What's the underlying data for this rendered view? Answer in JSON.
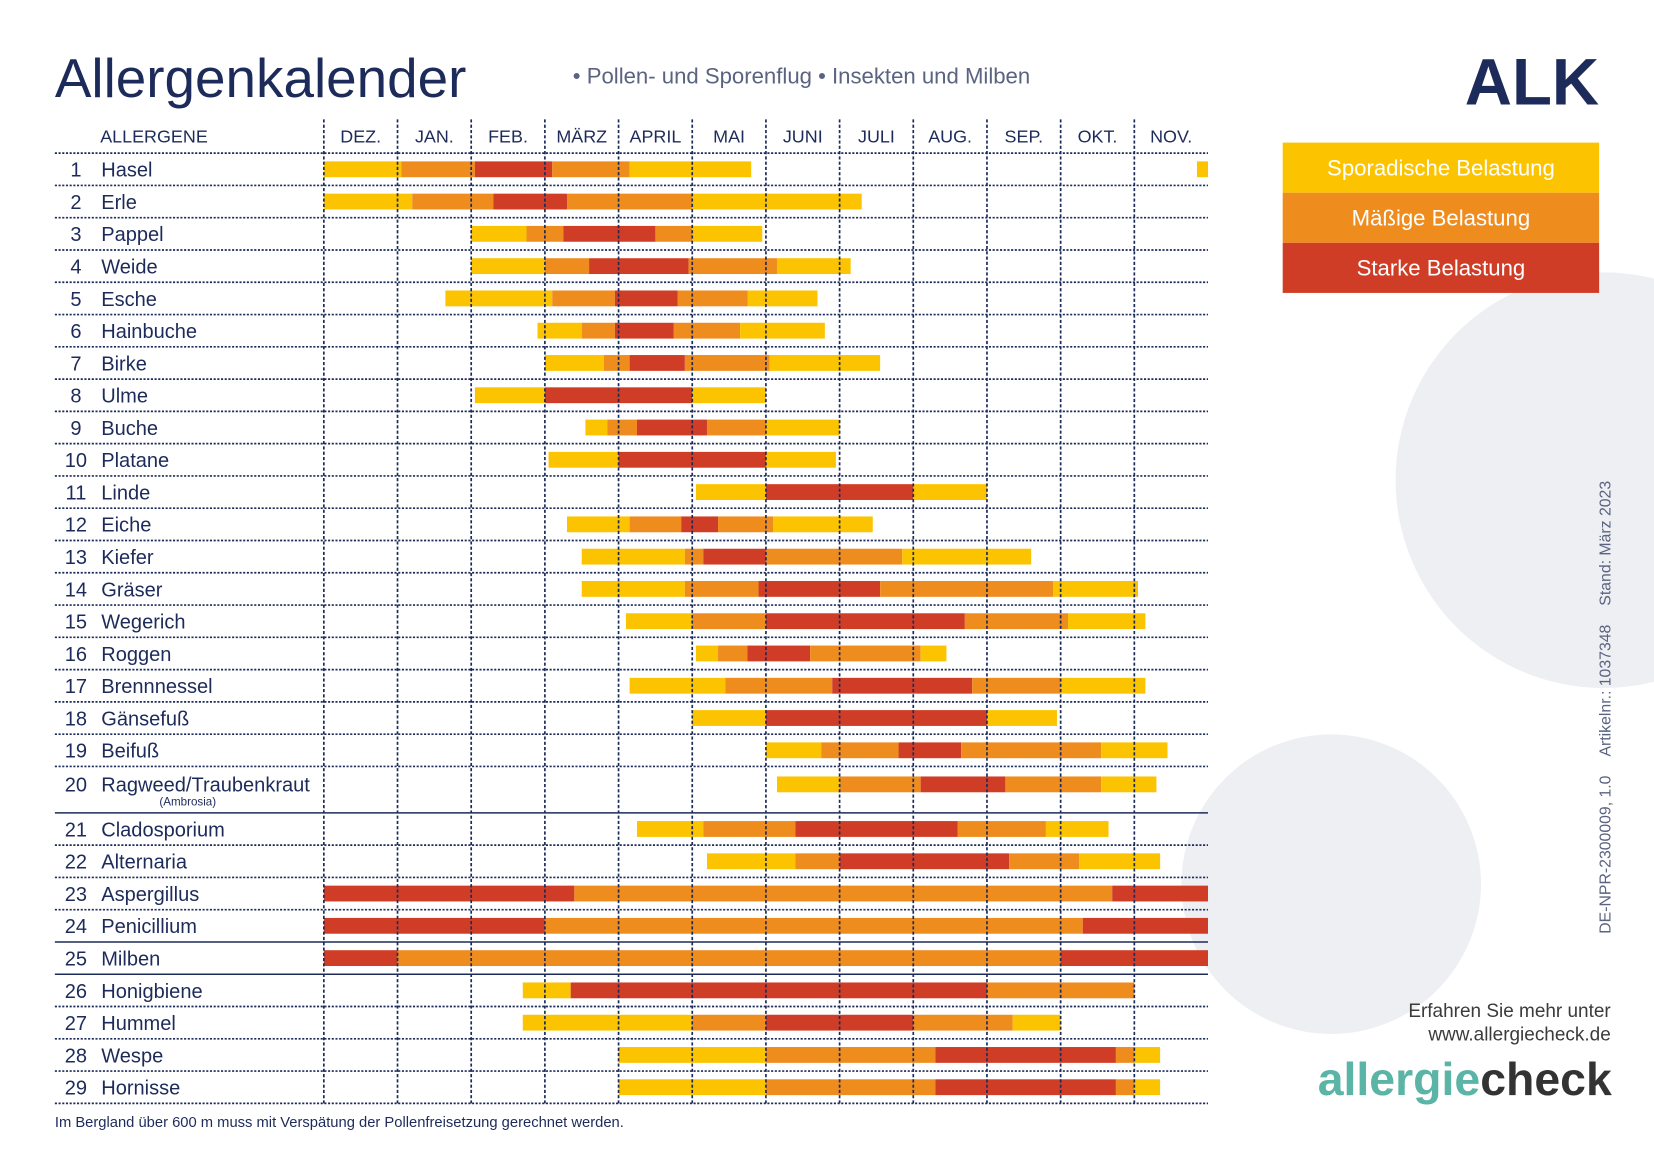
{
  "header": {
    "title": "Allergenkalender",
    "subtitle_items": [
      "Pollen- und Sporenflug",
      "Insekten und Milben"
    ],
    "logo": "ALK"
  },
  "legend": [
    {
      "label": "Sporadische Belastung",
      "color": "#fcc400"
    },
    {
      "label": "Mäßige Belastung",
      "color": "#ef8c1e"
    },
    {
      "label": "Starke Belastung",
      "color": "#d03d27"
    }
  ],
  "calendar": {
    "column_header": "ALLERGENE",
    "months": [
      "DEZ.",
      "JAN.",
      "FEB.",
      "MÄRZ",
      "APRIL",
      "MAI",
      "JUNI",
      "JULI",
      "AUG.",
      "SEP.",
      "OKT.",
      "NOV."
    ],
    "rows": [
      {
        "number": "1",
        "name": "Hasel",
        "segments": [
          [
            0,
            1.05,
            0
          ],
          [
            1.05,
            2.05,
            1
          ],
          [
            2.05,
            3.1,
            2
          ],
          [
            3.1,
            4.15,
            1
          ],
          [
            4.15,
            5.8,
            0
          ],
          [
            11.85,
            12,
            0
          ]
        ]
      },
      {
        "number": "2",
        "name": "Erle",
        "segments": [
          [
            0,
            1.2,
            0
          ],
          [
            1.2,
            2.3,
            1
          ],
          [
            2.3,
            3.3,
            2
          ],
          [
            3.3,
            5.0,
            1
          ],
          [
            5.0,
            7.3,
            0
          ]
        ]
      },
      {
        "number": "3",
        "name": "Pappel",
        "segments": [
          [
            2.0,
            2.75,
            0
          ],
          [
            2.75,
            3.25,
            1
          ],
          [
            3.25,
            4.5,
            2
          ],
          [
            4.5,
            5.0,
            1
          ],
          [
            5.0,
            5.95,
            0
          ]
        ]
      },
      {
        "number": "4",
        "name": "Weide",
        "segments": [
          [
            2.0,
            3.0,
            0
          ],
          [
            3.0,
            3.6,
            1
          ],
          [
            3.6,
            4.95,
            2
          ],
          [
            4.95,
            6.15,
            1
          ],
          [
            6.15,
            7.15,
            0
          ]
        ]
      },
      {
        "number": "5",
        "name": "Esche",
        "segments": [
          [
            1.65,
            3.1,
            0
          ],
          [
            3.1,
            3.95,
            1
          ],
          [
            3.95,
            4.8,
            2
          ],
          [
            4.8,
            5.75,
            1
          ],
          [
            5.75,
            6.7,
            0
          ]
        ]
      },
      {
        "number": "6",
        "name": "Hainbuche",
        "segments": [
          [
            2.9,
            3.5,
            0
          ],
          [
            3.5,
            3.95,
            1
          ],
          [
            3.95,
            4.75,
            2
          ],
          [
            4.75,
            5.65,
            1
          ],
          [
            5.65,
            6.8,
            0
          ]
        ]
      },
      {
        "number": "7",
        "name": "Birke",
        "segments": [
          [
            3.0,
            3.8,
            0
          ],
          [
            3.8,
            4.15,
            1
          ],
          [
            4.15,
            4.9,
            2
          ],
          [
            4.9,
            6.05,
            1
          ],
          [
            6.05,
            7.55,
            0
          ]
        ]
      },
      {
        "number": "8",
        "name": "Ulme",
        "segments": [
          [
            2.05,
            3.0,
            0
          ],
          [
            3.0,
            5.0,
            2
          ],
          [
            5.0,
            6.0,
            0
          ]
        ]
      },
      {
        "number": "9",
        "name": "Buche",
        "segments": [
          [
            3.55,
            3.85,
            0
          ],
          [
            3.85,
            4.25,
            1
          ],
          [
            4.25,
            5.2,
            2
          ],
          [
            5.2,
            6.0,
            1
          ],
          [
            6.0,
            7.0,
            0
          ]
        ]
      },
      {
        "number": "10",
        "name": "Platane",
        "segments": [
          [
            3.05,
            4.0,
            0
          ],
          [
            4.0,
            6.0,
            2
          ],
          [
            6.0,
            6.95,
            0
          ]
        ]
      },
      {
        "number": "11",
        "name": "Linde",
        "segments": [
          [
            5.05,
            6.0,
            0
          ],
          [
            6.0,
            8.0,
            2
          ],
          [
            8.0,
            9.0,
            0
          ]
        ]
      },
      {
        "number": "12",
        "name": "Eiche",
        "segments": [
          [
            3.3,
            4.15,
            0
          ],
          [
            4.15,
            4.85,
            1
          ],
          [
            4.85,
            5.35,
            2
          ],
          [
            5.35,
            6.1,
            1
          ],
          [
            6.1,
            7.45,
            0
          ]
        ]
      },
      {
        "number": "13",
        "name": "Kiefer",
        "segments": [
          [
            3.5,
            4.9,
            0
          ],
          [
            4.9,
            5.15,
            1
          ],
          [
            5.15,
            6.0,
            2
          ],
          [
            6.0,
            7.85,
            1
          ],
          [
            7.85,
            9.6,
            0
          ]
        ]
      },
      {
        "number": "14",
        "name": "Gräser",
        "segments": [
          [
            3.5,
            4.9,
            0
          ],
          [
            4.9,
            5.9,
            1
          ],
          [
            5.9,
            7.55,
            2
          ],
          [
            7.55,
            9.9,
            1
          ],
          [
            9.9,
            11.05,
            0
          ]
        ]
      },
      {
        "number": "15",
        "name": "Wegerich",
        "segments": [
          [
            4.1,
            5.0,
            0
          ],
          [
            5.0,
            6.0,
            1
          ],
          [
            6.0,
            8.7,
            2
          ],
          [
            8.7,
            10.1,
            1
          ],
          [
            10.1,
            11.15,
            0
          ]
        ]
      },
      {
        "number": "16",
        "name": "Roggen",
        "segments": [
          [
            5.05,
            5.35,
            0
          ],
          [
            5.35,
            5.75,
            1
          ],
          [
            5.75,
            6.6,
            2
          ],
          [
            6.6,
            8.1,
            1
          ],
          [
            8.1,
            8.45,
            0
          ]
        ]
      },
      {
        "number": "17",
        "name": "Brennnessel",
        "segments": [
          [
            4.15,
            5.45,
            0
          ],
          [
            5.45,
            6.9,
            1
          ],
          [
            6.9,
            8.8,
            2
          ],
          [
            8.8,
            10.0,
            1
          ],
          [
            10.0,
            11.15,
            0
          ]
        ]
      },
      {
        "number": "18",
        "name": "Gänsefuß",
        "segments": [
          [
            5.0,
            6.0,
            0
          ],
          [
            6.0,
            9.0,
            2
          ],
          [
            9.0,
            9.95,
            0
          ]
        ]
      },
      {
        "number": "19",
        "name": "Beifuß",
        "segments": [
          [
            6.0,
            6.75,
            0
          ],
          [
            6.75,
            7.8,
            1
          ],
          [
            7.8,
            8.65,
            2
          ],
          [
            8.65,
            10.55,
            1
          ],
          [
            10.55,
            11.45,
            0
          ]
        ]
      },
      {
        "number": "20",
        "name": "Ragweed/Traubenkraut",
        "note": "(Ambrosia)",
        "segments": [
          [
            6.15,
            7.0,
            0
          ],
          [
            7.0,
            8.1,
            1
          ],
          [
            8.1,
            9.25,
            2
          ],
          [
            9.25,
            10.55,
            1
          ],
          [
            10.55,
            11.3,
            0
          ]
        ]
      },
      {
        "number": "21",
        "name": "Cladosporium",
        "segments": [
          [
            4.25,
            5.15,
            0
          ],
          [
            5.15,
            6.4,
            1
          ],
          [
            6.4,
            8.6,
            2
          ],
          [
            8.6,
            9.8,
            1
          ],
          [
            9.8,
            10.65,
            0
          ]
        ]
      },
      {
        "number": "22",
        "name": "Alternaria",
        "segments": [
          [
            5.2,
            6.4,
            0
          ],
          [
            6.4,
            7.0,
            1
          ],
          [
            7.0,
            9.3,
            2
          ],
          [
            9.3,
            10.25,
            1
          ],
          [
            10.25,
            11.35,
            0
          ]
        ]
      },
      {
        "number": "23",
        "name": "Aspergillus",
        "segments": [
          [
            0,
            3.4,
            2
          ],
          [
            3.4,
            10.7,
            1
          ],
          [
            10.7,
            12,
            2
          ]
        ]
      },
      {
        "number": "24",
        "name": "Penicillium",
        "segments": [
          [
            0,
            3.0,
            2
          ],
          [
            3.0,
            10.3,
            1
          ],
          [
            10.3,
            12,
            2
          ]
        ]
      },
      {
        "number": "25",
        "name": "Milben",
        "segments": [
          [
            0,
            1.0,
            2
          ],
          [
            1.0,
            10.0,
            1
          ],
          [
            10.0,
            12,
            2
          ]
        ]
      },
      {
        "number": "26",
        "name": "Honigbiene",
        "segments": [
          [
            2.7,
            3.35,
            0
          ],
          [
            3.35,
            9.0,
            2
          ],
          [
            9.0,
            11.0,
            1
          ]
        ]
      },
      {
        "number": "27",
        "name": "Hummel",
        "segments": [
          [
            2.7,
            5.0,
            0
          ],
          [
            5.0,
            6.0,
            1
          ],
          [
            6.0,
            8.0,
            2
          ],
          [
            8.0,
            9.35,
            1
          ],
          [
            9.35,
            10.0,
            0
          ]
        ]
      },
      {
        "number": "28",
        "name": "Wespe",
        "segments": [
          [
            4.0,
            6.0,
            0
          ],
          [
            6.0,
            8.3,
            1
          ],
          [
            8.3,
            10.75,
            2
          ],
          [
            10.75,
            11.0,
            1
          ],
          [
            11.0,
            11.35,
            0
          ]
        ]
      },
      {
        "number": "29",
        "name": "Hornisse",
        "segments": [
          [
            4.0,
            6.0,
            0
          ],
          [
            6.0,
            8.3,
            1
          ],
          [
            8.3,
            10.75,
            2
          ],
          [
            10.75,
            11.0,
            1
          ],
          [
            11.0,
            11.35,
            0
          ]
        ]
      }
    ]
  },
  "side_text": [
    "DE-NPR-2300009, 1.0",
    "Artikelnr.: 1037348",
    "Stand: März 2023"
  ],
  "footer": {
    "info": [
      "Erfahren Sie mehr unter",
      "www.allergiecheck.de"
    ],
    "brand": [
      "allergie",
      "check"
    ],
    "note": "Im Bergland über 600 m muss mit Verspätung der Pollenfreisetzung gerechnet werden."
  }
}
